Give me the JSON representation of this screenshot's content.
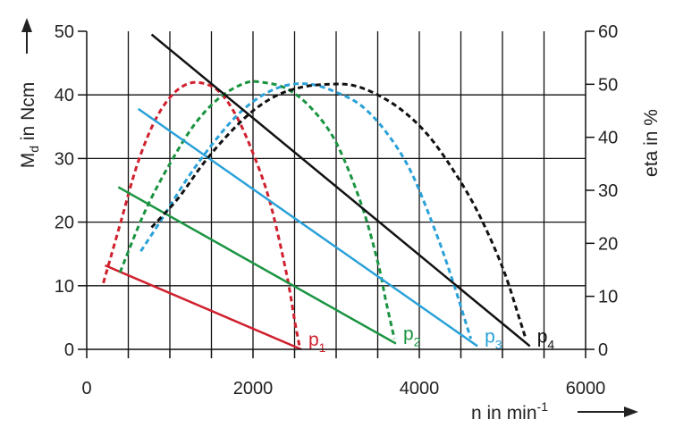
{
  "chart_data": {
    "type": "line",
    "x_axis": {
      "label_main": "n in min",
      "label_sup": "-1",
      "range": [
        0,
        6000
      ],
      "ticks": [
        0,
        2000,
        4000,
        6000
      ],
      "tick_labels": [
        "0",
        "2000",
        "4000",
        "6000"
      ],
      "grid_step": 500
    },
    "y_axis_left": {
      "label_main": "M",
      "label_sub": "d",
      "label_rest": " in Ncm",
      "range": [
        0,
        50
      ],
      "ticks": [
        0,
        10,
        20,
        30,
        40,
        50
      ],
      "tick_labels": [
        "0",
        "10",
        "20",
        "30",
        "40",
        "50"
      ]
    },
    "y_axis_right": {
      "label": "eta in %",
      "range": [
        0,
        60
      ],
      "ticks": [
        0,
        10,
        20,
        30,
        40,
        50,
        60
      ],
      "tick_labels": [
        "0",
        "10",
        "20",
        "30",
        "40",
        "50",
        "60"
      ]
    },
    "grid": true,
    "series": [
      {
        "name": "p1",
        "label_main": "p",
        "label_sub": "1",
        "color": "#d0202e",
        "torque": {
          "x": [
            220,
            2580
          ],
          "y": [
            13.2,
            0
          ]
        },
        "efficiency": {
          "x": [
            200,
            400,
            600,
            800,
            1000,
            1200,
            1400,
            1600,
            1800,
            2000,
            2200,
            2400,
            2500,
            2560
          ],
          "y": [
            12.5,
            23.5,
            34.5,
            42.5,
            47.5,
            50.0,
            50.2,
            48.5,
            44.0,
            37.0,
            28.0,
            14.5,
            5.5,
            0.5
          ]
        }
      },
      {
        "name": "p2",
        "label_main": "p",
        "label_sub": "2",
        "color": "#1a9441",
        "torque": {
          "x": [
            380,
            3720
          ],
          "y": [
            25.5,
            0.9
          ]
        },
        "efficiency": {
          "x": [
            400,
            700,
            1000,
            1300,
            1600,
            1900,
            2100,
            2400,
            2700,
            3000,
            3300,
            3500,
            3600,
            3700
          ],
          "y": [
            14.5,
            26.0,
            35.0,
            42.5,
            47.5,
            50.2,
            50.4,
            49.2,
            45.5,
            39.0,
            27.5,
            16.5,
            9.0,
            2.0
          ]
        }
      },
      {
        "name": "p3",
        "label_main": "p",
        "label_sub": "3",
        "color": "#2aa1d8",
        "torque": {
          "x": [
            620,
            4700
          ],
          "y": [
            37.8,
            0.5
          ]
        },
        "efficiency": {
          "x": [
            650,
            900,
            1200,
            1500,
            1800,
            2100,
            2400,
            2700,
            3000,
            3300,
            3600,
            3900,
            4200,
            4400,
            4550,
            4620
          ],
          "y": [
            18.5,
            24.5,
            32.0,
            38.5,
            44.0,
            47.8,
            49.8,
            50.0,
            48.5,
            46.0,
            41.0,
            33.5,
            22.0,
            13.0,
            5.5,
            2.0
          ]
        }
      },
      {
        "name": "p4",
        "label_main": "p",
        "label_sub": "4",
        "color": "#111111",
        "torque": {
          "x": [
            780,
            5330
          ],
          "y": [
            49.5,
            0.5
          ]
        },
        "efficiency": {
          "x": [
            780,
            1100,
            1400,
            1700,
            2000,
            2300,
            2600,
            2900,
            3200,
            3500,
            3800,
            4100,
            4400,
            4700,
            5000,
            5200,
            5280
          ],
          "y": [
            23.0,
            28.5,
            35.0,
            40.5,
            45.0,
            48.0,
            49.5,
            50.0,
            49.8,
            48.0,
            45.0,
            40.5,
            34.0,
            26.0,
            15.5,
            6.0,
            2.0
          ]
        }
      }
    ]
  }
}
